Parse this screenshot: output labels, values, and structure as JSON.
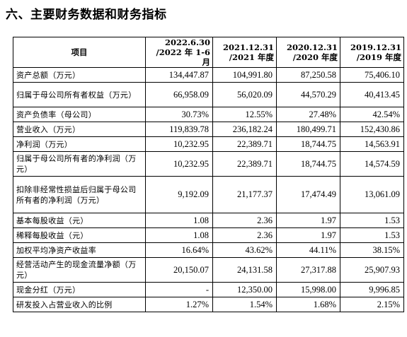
{
  "section_title": "六、主要财务数据和财务指标",
  "table": {
    "header": {
      "item": "项目",
      "periods": [
        {
          "line1": "2022.6.30",
          "line2": "/2022 年 1-6 月"
        },
        {
          "line1": "2021.12.31",
          "line2": "/2021 年度"
        },
        {
          "line1": "2020.12.31",
          "line2": "/2020 年度"
        },
        {
          "line1": "2019.12.31",
          "line2": "/2019 年度"
        }
      ]
    },
    "rows": [
      {
        "label": "资产总额（万元）",
        "values": [
          "134,447.87",
          "104,991.80",
          "87,250.58",
          "75,406.10"
        ]
      },
      {
        "label": "归属于母公司所有者权益（万元）",
        "values": [
          "66,958.09",
          "56,020.09",
          "44,570.29",
          "40,413.45"
        ]
      },
      {
        "label": "资产负债率（母公司）",
        "values": [
          "30.73%",
          "12.55%",
          "27.48%",
          "42.54%"
        ]
      },
      {
        "label": "营业收入（万元）",
        "values": [
          "119,839.78",
          "236,182.24",
          "180,499.71",
          "152,430.86"
        ]
      },
      {
        "label": "净利润（万元）",
        "values": [
          "10,232.95",
          "22,389.71",
          "18,744.75",
          "14,563.91"
        ]
      },
      {
        "label": "归属于母公司所有者的净利润（万元）",
        "values": [
          "10,232.95",
          "22,389.71",
          "18,744.75",
          "14,574.59"
        ]
      },
      {
        "label": "扣除非经常性损益后归属于母公司所有者的净利润（万元）",
        "values": [
          "9,192.09",
          "21,177.37",
          "17,474.49",
          "13,061.09"
        ]
      },
      {
        "label": "基本每股收益（元）",
        "values": [
          "1.08",
          "2.36",
          "1.97",
          "1.53"
        ]
      },
      {
        "label": "稀释每股收益（元）",
        "values": [
          "1.08",
          "2.36",
          "1.97",
          "1.53"
        ]
      },
      {
        "label": "加权平均净资产收益率",
        "values": [
          "16.64%",
          "43.62%",
          "44.11%",
          "38.15%"
        ]
      },
      {
        "label": "经营活动产生的现金流量净额（万元）",
        "values": [
          "20,150.07",
          "24,131.58",
          "27,317.88",
          "25,907.93"
        ]
      },
      {
        "label": "现金分红（万元）",
        "values": [
          "-",
          "12,350.00",
          "15,998.00",
          "9,996.85"
        ]
      },
      {
        "label": "研发投入占营业收入的比例",
        "values": [
          "1.27%",
          "1.54%",
          "1.68%",
          "2.15%"
        ]
      }
    ]
  }
}
